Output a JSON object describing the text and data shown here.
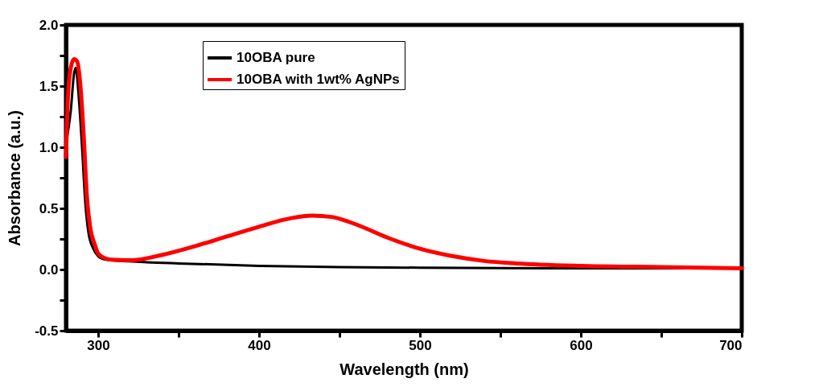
{
  "chart_data": {
    "type": "line",
    "xlabel": "Wavelength (nm)",
    "ylabel": "Absorbance (a.u.)",
    "xlim": [
      280,
      700
    ],
    "ylim": [
      -0.5,
      2.0
    ],
    "xticks": [
      300,
      {
        "value": 350,
        "label": null
      },
      400,
      {
        "value": 450,
        "label": null
      },
      500,
      {
        "value": 550,
        "label": null
      },
      600,
      {
        "value": 650,
        "label": null
      },
      700
    ],
    "yticks": [
      {
        "value": -0.5,
        "label": "-0.5"
      },
      {
        "value": -0.25,
        "label": null
      },
      {
        "value": 0,
        "label": "0.0"
      },
      {
        "value": 0.25,
        "label": null
      },
      {
        "value": 0.5,
        "label": "0.5"
      },
      {
        "value": 0.75,
        "label": null
      },
      {
        "value": 1.0,
        "label": "1.0"
      },
      {
        "value": 1.25,
        "label": null
      },
      {
        "value": 1.5,
        "label": "1.5"
      },
      {
        "value": 1.75,
        "label": null
      },
      {
        "value": 2.0,
        "label": "2.0"
      }
    ],
    "legend": "top",
    "grid": false,
    "marker": "none",
    "line_style": "solid",
    "series": [
      {
        "name": "10OBA pure",
        "color": "#000000",
        "x": [
          280,
          283,
          285,
          286,
          288,
          290,
          292,
          294,
          297,
          300,
          305,
          330,
          350,
          400,
          450,
          500,
          600,
          700
        ],
        "values": [
          1.03,
          1.3,
          1.6,
          1.65,
          1.4,
          1.0,
          0.55,
          0.3,
          0.17,
          0.11,
          0.08,
          0.06,
          0.05,
          0.03,
          0.02,
          0.015,
          0.01,
          0.01
        ]
      },
      {
        "name": "10OBA with 1wt% AgNPs",
        "color": "#ff0000",
        "x": [
          280,
          281,
          283,
          285,
          287,
          289,
          291,
          293,
          295,
          298,
          300,
          303,
          308,
          320,
          340,
          360,
          380,
          400,
          420,
          433,
          445,
          460,
          480,
          500,
          520,
          540,
          560,
          600,
          650,
          700
        ],
        "values": [
          0.92,
          1.35,
          1.65,
          1.72,
          1.7,
          1.5,
          1.1,
          0.6,
          0.35,
          0.2,
          0.13,
          0.1,
          0.08,
          0.075,
          0.12,
          0.19,
          0.27,
          0.35,
          0.42,
          0.44,
          0.43,
          0.37,
          0.26,
          0.17,
          0.11,
          0.07,
          0.05,
          0.03,
          0.02,
          0.01
        ]
      }
    ]
  }
}
